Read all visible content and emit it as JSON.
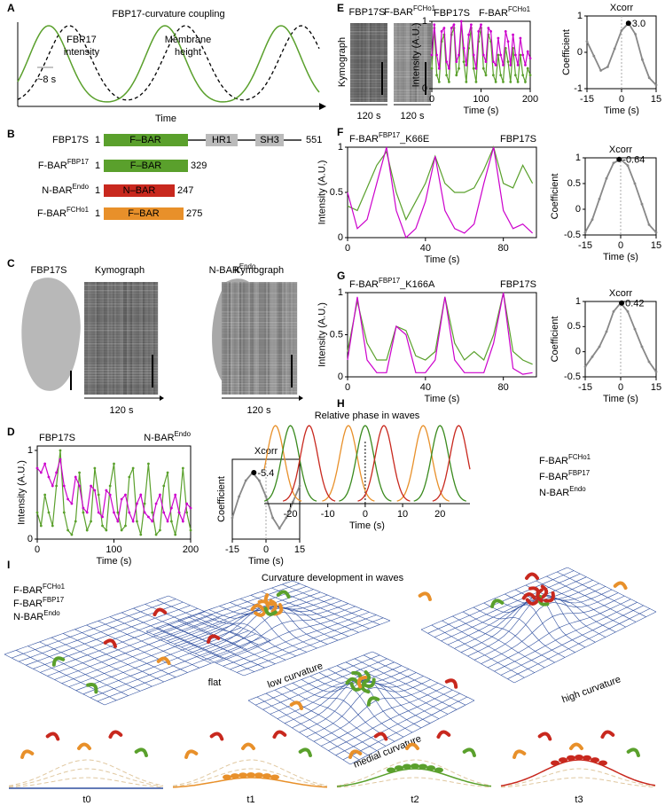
{
  "panel_letters": [
    "A",
    "B",
    "C",
    "D",
    "E",
    "F",
    "G",
    "H",
    "I"
  ],
  "A": {
    "title": "FBP17-curvature coupling",
    "green_label": [
      "FBP17",
      "intensity"
    ],
    "black_label": [
      "Membrane",
      "height"
    ],
    "period_label": "~8 s",
    "xlabel": "Time"
  },
  "B": {
    "rows": [
      {
        "name": {
          "base": "FBP17S"
        },
        "start": 1,
        "domains": [
          "F–BAR",
          "HR1",
          "SH3"
        ],
        "end": 551
      },
      {
        "name": {
          "base": "F-BAR",
          "sup": "FBP17"
        },
        "start": 1,
        "domains": [
          "F–BAR"
        ],
        "end": 329
      },
      {
        "name": {
          "base": "N-BAR",
          "sup": "Endo"
        },
        "start": 1,
        "domains": [
          "N–BAR"
        ],
        "end": 247
      },
      {
        "name": {
          "base": "F-BAR",
          "sup": "FCHo1"
        },
        "start": 1,
        "domains": [
          "F–BAR"
        ],
        "end": 275
      }
    ]
  },
  "C": {
    "labels": [
      {
        "base": "FBP17S"
      },
      {
        "base": "Kymograph"
      },
      {
        "base": "N-BAR",
        "sup": "Endo"
      },
      {
        "base": "Kymograph"
      }
    ],
    "time_labels": [
      "120 s",
      "120 s"
    ]
  },
  "E_images": {
    "labels": [
      {
        "base": "FBP17S"
      },
      {
        "base": "F-BAR",
        "sup": "FCHo1"
      }
    ],
    "side_label": "Kymograph",
    "time_labels": [
      "120 s",
      "120 s"
    ]
  },
  "I": {
    "title": "Curvature development in waves",
    "legend": [
      {
        "base": "F-BAR",
        "sup": "FCHo1"
      },
      {
        "base": "F-BAR",
        "sup": "FBP17"
      },
      {
        "base": "N-BAR",
        "sup": "Endo"
      }
    ],
    "stages": [
      "flat",
      "low curvature",
      "medial curvature",
      "high curvature"
    ],
    "times": [
      "t0",
      "t1",
      "t2",
      "t3"
    ]
  },
  "chart_data": [
    {
      "type": "line",
      "xlabel": "Time (s)",
      "ylabel": "Intensity (A.U.)",
      "markers": true,
      "x": [
        0,
        5,
        10,
        15,
        20,
        25,
        30,
        35,
        40,
        45,
        50,
        55,
        60,
        65,
        70,
        75,
        80,
        85,
        90,
        95,
        100,
        105,
        110,
        115,
        120,
        125,
        130,
        135,
        140,
        145,
        150,
        155,
        160,
        165,
        170,
        175,
        180,
        185,
        190,
        195,
        200
      ],
      "series": [
        {
          "name": "FBP17S",
          "color": "#5aa02c",
          "values": [
            0.3,
            0.15,
            0.5,
            0.3,
            0.15,
            0.6,
            1.0,
            0.3,
            0.1,
            0.05,
            0.2,
            0.75,
            0.3,
            0.1,
            0.2,
            0.8,
            0.5,
            0.15,
            0.1,
            0.6,
            0.85,
            0.3,
            0.1,
            0.15,
            0.7,
            0.8,
            0.2,
            0.05,
            0.4,
            0.85,
            0.3,
            0.05,
            0.1,
            0.6,
            0.75,
            0.2,
            0.05,
            0.3,
            0.8,
            0.3,
            0.1
          ]
        },
        {
          "name": "N-BAR",
          "name_sup": "Endo",
          "color": "#cc00cc",
          "values": [
            0.8,
            0.75,
            0.85,
            0.7,
            0.6,
            0.75,
            0.9,
            0.6,
            0.45,
            0.4,
            0.7,
            0.6,
            0.35,
            0.3,
            0.6,
            0.55,
            0.3,
            0.25,
            0.55,
            0.5,
            0.3,
            0.2,
            0.45,
            0.5,
            0.3,
            0.2,
            0.4,
            0.5,
            0.3,
            0.25,
            0.2,
            0.4,
            0.5,
            0.3,
            0.2,
            0.35,
            0.5,
            0.3,
            0.2,
            0.4,
            0.35
          ]
        }
      ],
      "xlim": [
        0,
        200
      ],
      "ylim": [
        0,
        1.05
      ],
      "xticks": [
        0,
        100,
        200
      ],
      "yticks": [
        0,
        1
      ]
    },
    {
      "type": "line",
      "title": "Xcorr",
      "xlabel": "Time (s)",
      "ylabel": "Coefficient",
      "markers": true,
      "x": [
        -15,
        -12,
        -9,
        -6,
        -3,
        0,
        3,
        6,
        9,
        12,
        15
      ],
      "series": [
        {
          "color": "#888888",
          "values": [
            -0.3,
            0.1,
            0.4,
            0.55,
            0.4,
            0.1,
            -0.3,
            -0.5,
            -0.3,
            0.0,
            0.3
          ]
        }
      ],
      "xlim": [
        -15,
        15
      ],
      "ylim": [
        -0.7,
        0.8
      ],
      "xticks": [
        -15,
        0,
        15
      ],
      "peak": {
        "x": -5.4,
        "y": 0.55
      }
    },
    {
      "type": "line",
      "xlabel": "Time (s)",
      "ylabel": "Intensity (A.U.)",
      "markers": true,
      "x": [
        0,
        5,
        10,
        15,
        20,
        25,
        30,
        35,
        40,
        45,
        50,
        55,
        60,
        65,
        70,
        75,
        80,
        85,
        90,
        95,
        100,
        105,
        110,
        115,
        120,
        125,
        130,
        135,
        140,
        145,
        150,
        155,
        160,
        165,
        170,
        175,
        180,
        185,
        190,
        195,
        200
      ],
      "series": [
        {
          "name": "FBP17S",
          "color": "#5aa02c",
          "values": [
            0.3,
            0.9,
            0.2,
            0.1,
            0.7,
            0.8,
            0.2,
            0.1,
            0.8,
            0.9,
            0.2,
            0.3,
            1.0,
            0.4,
            0.1,
            0.6,
            0.9,
            0.3,
            0.1,
            0.7,
            0.9,
            0.3,
            0.2,
            0.8,
            0.7,
            0.2,
            0.1,
            0.5,
            0.2,
            0.1,
            0.6,
            0.4,
            0.1,
            0.6,
            0.2,
            0.1,
            0.5,
            0.2,
            0.1,
            0.3,
            0.2
          ]
        },
        {
          "name": "F-BAR",
          "name_sup": "FCHo1",
          "color": "#cc00cc",
          "values": [
            0.5,
            0.95,
            0.5,
            0.3,
            0.85,
            0.9,
            0.4,
            0.3,
            0.9,
            0.95,
            0.4,
            0.5,
            1.0,
            0.6,
            0.35,
            0.8,
            0.95,
            0.5,
            0.3,
            0.85,
            0.95,
            0.5,
            0.4,
            0.9,
            0.85,
            0.4,
            0.35,
            0.75,
            0.5,
            0.35,
            0.85,
            0.7,
            0.35,
            0.8,
            0.5,
            0.35,
            0.75,
            0.5,
            0.35,
            0.55,
            0.45
          ]
        }
      ],
      "xlim": [
        0,
        200
      ],
      "ylim": [
        0,
        1
      ],
      "xticks": [
        0,
        100,
        200
      ],
      "yticks": [
        0,
        1
      ]
    },
    {
      "type": "line",
      "title": "Xcorr",
      "xlabel": "Time (s)",
      "ylabel": "Coefficient",
      "markers": true,
      "x": [
        -15,
        -12,
        -9,
        -6,
        -3,
        0,
        3,
        6,
        9,
        12,
        15
      ],
      "series": [
        {
          "color": "#888888",
          "values": [
            0.3,
            -0.1,
            -0.5,
            -0.4,
            0.1,
            0.6,
            0.8,
            0.5,
            -0.2,
            -0.7,
            -0.9
          ]
        }
      ],
      "xlim": [
        -15,
        15
      ],
      "ylim": [
        -1,
        1
      ],
      "xticks": [
        -15,
        0,
        15
      ],
      "yticks": [
        -1,
        0,
        1
      ],
      "peak": {
        "x": {
          "value": 3,
          "label": "3.0"
        },
        "y": 0.8
      }
    },
    {
      "type": "line",
      "xlabel": "Time (s)",
      "ylabel": "Intensity (A.U.)",
      "x": [
        0,
        5,
        10,
        15,
        20,
        25,
        30,
        35,
        40,
        45,
        50,
        55,
        60,
        65,
        70,
        75,
        80,
        85,
        90,
        95
      ],
      "series": [
        {
          "name": "F-BAR",
          "name_sup": "FBP17",
          "name_suffix": "_K66E",
          "color": "#5aa02c",
          "values": [
            0.35,
            0.3,
            0.55,
            0.8,
            0.95,
            0.5,
            0.2,
            0.4,
            0.6,
            0.9,
            0.6,
            0.5,
            0.5,
            0.55,
            0.75,
            1.0,
            0.6,
            0.55,
            0.8,
            0.6
          ]
        },
        {
          "name": "FBP17S",
          "color": "#cc00cc",
          "values": [
            0.5,
            0.1,
            0.2,
            0.6,
            1.0,
            0.3,
            0.0,
            0.1,
            0.4,
            0.9,
            0.3,
            0.1,
            0.05,
            0.15,
            0.6,
            1.0,
            0.3,
            0.1,
            0.15,
            0.05
          ]
        }
      ],
      "xlim": [
        0,
        97
      ],
      "ylim": [
        0,
        1
      ],
      "xticks": [
        0,
        40,
        80
      ],
      "yticks": [
        0,
        0.5,
        1
      ]
    },
    {
      "type": "line",
      "title": "Xcorr",
      "xlabel": "Time (s)",
      "ylabel": "Coefficient",
      "markers": true,
      "x": [
        -15,
        -12,
        -9,
        -6,
        -3,
        0,
        3,
        6,
        9,
        12,
        15
      ],
      "series": [
        {
          "color": "#888888",
          "values": [
            -0.45,
            -0.2,
            0.2,
            0.6,
            0.9,
            0.97,
            0.85,
            0.5,
            0.1,
            -0.3,
            -0.45
          ]
        }
      ],
      "xlim": [
        -15,
        15
      ],
      "ylim": [
        -0.5,
        1
      ],
      "xticks": [
        -15,
        0,
        15
      ],
      "yticks": [
        -0.5,
        0,
        0.5,
        1
      ],
      "peak": {
        "x": -0.64,
        "y": 0.97
      }
    },
    {
      "type": "line",
      "xlabel": "Time (s)",
      "ylabel": "Intensity (A.U.)",
      "x": [
        0,
        5,
        10,
        15,
        20,
        25,
        30,
        35,
        40,
        45,
        50,
        55,
        60,
        65,
        70,
        75,
        80,
        85,
        90,
        95
      ],
      "series": [
        {
          "name": "F-BAR",
          "name_sup": "FBP17",
          "name_suffix": "_K166A",
          "color": "#5aa02c",
          "values": [
            0.3,
            0.9,
            0.4,
            0.2,
            0.2,
            0.6,
            0.55,
            0.25,
            0.2,
            0.3,
            0.95,
            0.4,
            0.2,
            0.3,
            0.2,
            0.5,
            1.0,
            0.3,
            0.2,
            0.15
          ]
        },
        {
          "name": "FBP17S",
          "color": "#cc00cc",
          "values": [
            0.2,
            0.95,
            0.2,
            0.05,
            0.05,
            0.6,
            0.5,
            0.05,
            0.05,
            0.2,
            0.95,
            0.2,
            0.05,
            0.05,
            0.05,
            0.4,
            1.0,
            0.1,
            0.03,
            0.05
          ]
        }
      ],
      "xlim": [
        0,
        97
      ],
      "ylim": [
        0,
        1
      ],
      "xticks": [
        0,
        40,
        80
      ],
      "yticks": [
        0,
        0.5,
        1
      ]
    },
    {
      "type": "line",
      "title": "Xcorr",
      "xlabel": "Time (s)",
      "ylabel": "Coefficient",
      "markers": true,
      "x": [
        -15,
        -12,
        -9,
        -6,
        -3,
        0,
        3,
        6,
        9,
        12,
        15
      ],
      "series": [
        {
          "color": "#888888",
          "values": [
            -0.3,
            -0.1,
            0.1,
            0.4,
            0.8,
            0.97,
            0.8,
            0.45,
            0.1,
            -0.2,
            -0.4
          ]
        }
      ],
      "xlim": [
        -15,
        15
      ],
      "ylim": [
        -0.5,
        1
      ],
      "xticks": [
        -15,
        0,
        15
      ],
      "yticks": [
        -0.5,
        0,
        0.5,
        1
      ],
      "peak": {
        "x": 0.42,
        "y": 0.97
      }
    },
    {
      "type": "waves",
      "title": "Relative phase in waves",
      "xlabel": "Time (s)",
      "series": [
        {
          "name": "F-BAR",
          "name_sup": "FCHo1",
          "color": "#e8902a",
          "peaks": [
            -24,
            -4.5,
            15.5
          ]
        },
        {
          "name": "F-BAR",
          "name_sup": "FBP17",
          "color": "#3a8a1e",
          "peaks": [
            -20,
            0,
            20
          ]
        },
        {
          "name": "N-BAR",
          "name_sup": "Endo",
          "color": "#c8281e",
          "peaks": [
            -15,
            5,
            25
          ]
        }
      ],
      "xlim": [
        -27,
        28
      ],
      "xticks": [
        -20,
        -10,
        0,
        10,
        20
      ]
    }
  ]
}
